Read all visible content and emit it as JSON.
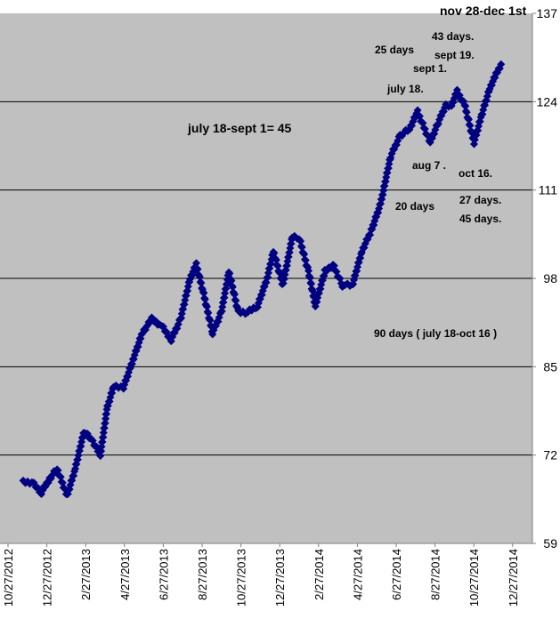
{
  "chart_data": {
    "type": "scatter",
    "title": "",
    "xlabel": "",
    "ylabel": "",
    "ylim": [
      59,
      137
    ],
    "y_ticks": [
      59,
      72,
      85,
      98,
      111,
      124,
      137
    ],
    "grid": "horizontal",
    "x_tick_labels": [
      "10/27/2012",
      "12/27/2012",
      "2/27/2013",
      "4/27/2013",
      "6/27/2013",
      "8/27/2013",
      "10/27/2013",
      "12/27/2013",
      "2/27/2014",
      "4/27/2014",
      "6/27/2014",
      "8/27/2014",
      "10/27/2014",
      "12/27/2014"
    ],
    "background": "#c0c0c0",
    "marker_color": "#000080",
    "annotations": [
      {
        "text": "nov 28-dec 1st"
      },
      {
        "text": "43 days."
      },
      {
        "text": "25 days"
      },
      {
        "text": "sept 19."
      },
      {
        "text": "sept 1."
      },
      {
        "text": "july 18."
      },
      {
        "text": "july 18-sept 1= 45"
      },
      {
        "text": "aug 7 ."
      },
      {
        "text": "oct 16."
      },
      {
        "text": "20 days"
      },
      {
        "text": "27 days."
      },
      {
        "text": "45 days."
      },
      {
        "text": "90 days ( july 18-oct 16 )"
      }
    ],
    "series": [
      {
        "values": [
          {
            "x": "2012-10-27",
            "y": 68
          },
          {
            "x": "2012-11-10",
            "y": 68
          },
          {
            "x": "2012-11-25",
            "y": 66.5
          },
          {
            "x": "2012-12-08",
            "y": 68.5
          },
          {
            "x": "2012-12-20",
            "y": 70
          },
          {
            "x": "2013-01-05",
            "y": 66
          },
          {
            "x": "2013-01-18",
            "y": 70
          },
          {
            "x": "2013-02-01",
            "y": 75.5
          },
          {
            "x": "2013-02-15",
            "y": 74
          },
          {
            "x": "2013-02-27",
            "y": 72
          },
          {
            "x": "2013-03-10",
            "y": 79
          },
          {
            "x": "2013-03-20",
            "y": 82
          },
          {
            "x": "2013-04-05",
            "y": 82
          },
          {
            "x": "2013-04-20",
            "y": 86
          },
          {
            "x": "2013-05-05",
            "y": 90
          },
          {
            "x": "2013-05-20",
            "y": 92
          },
          {
            "x": "2013-06-05",
            "y": 91
          },
          {
            "x": "2013-06-20",
            "y": 89
          },
          {
            "x": "2013-07-05",
            "y": 92
          },
          {
            "x": "2013-07-20",
            "y": 98
          },
          {
            "x": "2013-07-30",
            "y": 100
          },
          {
            "x": "2013-08-10",
            "y": 96
          },
          {
            "x": "2013-08-25",
            "y": 90
          },
          {
            "x": "2013-09-08",
            "y": 93
          },
          {
            "x": "2013-09-20",
            "y": 99
          },
          {
            "x": "2013-10-05",
            "y": 93
          },
          {
            "x": "2013-10-20",
            "y": 93
          },
          {
            "x": "2013-11-05",
            "y": 94
          },
          {
            "x": "2013-11-20",
            "y": 98
          },
          {
            "x": "2013-11-30",
            "y": 102
          },
          {
            "x": "2013-12-15",
            "y": 97
          },
          {
            "x": "2013-12-30",
            "y": 104
          },
          {
            "x": "2014-01-10",
            "y": 104
          },
          {
            "x": "2014-01-25",
            "y": 99
          },
          {
            "x": "2014-02-05",
            "y": 94
          },
          {
            "x": "2014-02-20",
            "y": 99
          },
          {
            "x": "2014-03-05",
            "y": 100
          },
          {
            "x": "2014-03-20",
            "y": 97
          },
          {
            "x": "2014-04-05",
            "y": 97
          },
          {
            "x": "2014-04-20",
            "y": 102
          },
          {
            "x": "2014-05-05",
            "y": 105
          },
          {
            "x": "2014-05-20",
            "y": 109
          },
          {
            "x": "2014-06-05",
            "y": 116
          },
          {
            "x": "2014-06-20",
            "y": 119
          },
          {
            "x": "2014-07-05",
            "y": 120
          },
          {
            "x": "2014-07-18",
            "y": 122.5
          },
          {
            "x": "2014-08-07",
            "y": 118
          },
          {
            "x": "2014-08-20",
            "y": 121
          },
          {
            "x": "2014-09-01",
            "y": 123.5
          },
          {
            "x": "2014-09-10",
            "y": 123.5
          },
          {
            "x": "2014-09-19",
            "y": 125.5
          },
          {
            "x": "2014-10-01",
            "y": 123.5
          },
          {
            "x": "2014-10-16",
            "y": 118
          },
          {
            "x": "2014-10-28",
            "y": 122
          },
          {
            "x": "2014-11-10",
            "y": 126
          },
          {
            "x": "2014-11-20",
            "y": 128
          },
          {
            "x": "2014-11-28",
            "y": 129.5
          }
        ]
      }
    ]
  }
}
